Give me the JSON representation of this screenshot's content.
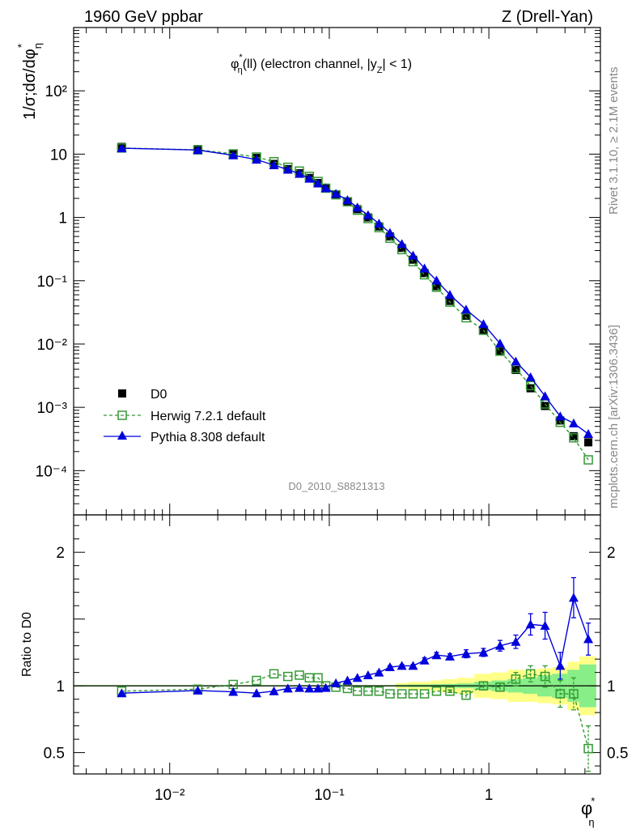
{
  "header": {
    "left": "1960 GeV ppbar",
    "right": "Z (Drell-Yan)"
  },
  "side_text": {
    "rivet": "Rivet 3.1.10, ≥ 2.1M events",
    "mcplots": "mcplots.cern.ch [arXiv:1306.3436]"
  },
  "watermark": "D0_2010_S8821313",
  "chart_data": [
    {
      "type": "line",
      "title": "φ*η(ll) (electron channel, |yZ| < 1)",
      "ylabel": "1/σ;dσ/dφ*η",
      "xlabel": "φ*η",
      "xscale": "log",
      "yscale": "log",
      "xlim": [
        0.0025,
        5.0
      ],
      "ylim": [
        2e-05,
        1000
      ],
      "x_ticks": [
        "10⁻²",
        "10⁻¹",
        "1"
      ],
      "y_ticks": [
        "10⁻⁴",
        "10⁻³",
        "10⁻²",
        "10⁻¹",
        "1",
        "10",
        "10²"
      ],
      "legend_position": "bottom-left",
      "x": [
        0.005,
        0.015,
        0.025,
        0.035,
        0.045,
        0.055,
        0.065,
        0.075,
        0.085,
        0.095,
        0.11,
        0.13,
        0.15,
        0.175,
        0.205,
        0.24,
        0.285,
        0.335,
        0.395,
        0.47,
        0.57,
        0.72,
        0.925,
        1.175,
        1.475,
        1.825,
        2.25,
        2.8,
        3.4,
        4.2
      ],
      "series": [
        {
          "name": "D0",
          "color": "#000000",
          "marker": "square",
          "values": [
            13.0,
            12.0,
            10.0,
            8.7,
            7.0,
            5.8,
            5.0,
            4.2,
            3.5,
            2.9,
            2.3,
            1.8,
            1.35,
            1.0,
            0.72,
            0.5,
            0.33,
            0.215,
            0.132,
            0.082,
            0.048,
            0.028,
            0.0165,
            0.0078,
            0.0039,
            0.002,
            0.00105,
            0.00062,
            0.00035,
            0.00028
          ]
        },
        {
          "name": "Herwig 7.2.1 default",
          "color": "#339933",
          "marker": "open-square",
          "dashed": true,
          "values": [
            12.5,
            11.7,
            10.1,
            9.0,
            7.6,
            6.2,
            5.4,
            4.45,
            3.7,
            2.9,
            2.28,
            1.77,
            1.3,
            0.96,
            0.69,
            0.47,
            0.31,
            0.2,
            0.124,
            0.079,
            0.046,
            0.026,
            0.0165,
            0.0077,
            0.0041,
            0.0022,
            0.00113,
            0.00058,
            0.00033,
            0.000148
          ]
        },
        {
          "name": "Pythia 8.308 default",
          "color": "#0000dd",
          "marker": "triangle",
          "values": [
            12.4,
            11.6,
            9.6,
            8.2,
            6.7,
            5.7,
            4.9,
            4.1,
            3.45,
            2.9,
            2.36,
            1.88,
            1.44,
            1.09,
            0.8,
            0.57,
            0.38,
            0.25,
            0.157,
            0.101,
            0.06,
            0.035,
            0.0207,
            0.0102,
            0.0053,
            0.003,
            0.0015,
            0.00072,
            0.00056,
            0.00038
          ]
        }
      ]
    },
    {
      "type": "line",
      "ylabel": "Ratio to D0",
      "xlabel": "φ*η",
      "xscale": "log",
      "xlim": [
        0.0025,
        5.0
      ],
      "ylim": [
        0.34,
        2.28
      ],
      "y_ticks": [
        "0.5",
        "1",
        "2"
      ],
      "reference_line": 1.0,
      "x": [
        0.005,
        0.015,
        0.025,
        0.035,
        0.045,
        0.055,
        0.065,
        0.075,
        0.085,
        0.095,
        0.11,
        0.13,
        0.15,
        0.175,
        0.205,
        0.24,
        0.285,
        0.335,
        0.395,
        0.47,
        0.57,
        0.72,
        0.925,
        1.175,
        1.475,
        1.825,
        2.25,
        2.8,
        3.4,
        4.2
      ],
      "data_band": {
        "x_edges": [
          0.0,
          0.01,
          0.02,
          0.03,
          0.04,
          0.05,
          0.06,
          0.07,
          0.08,
          0.09,
          0.1,
          0.12,
          0.14,
          0.16,
          0.19,
          0.22,
          0.26,
          0.31,
          0.36,
          0.43,
          0.51,
          0.63,
          0.81,
          1.04,
          1.31,
          1.64,
          2.01,
          2.49,
          3.11,
          3.69,
          4.71
        ],
        "inner": [
          0.005,
          0.005,
          0.005,
          0.005,
          0.005,
          0.005,
          0.005,
          0.005,
          0.005,
          0.005,
          0.005,
          0.005,
          0.005,
          0.005,
          0.005,
          0.005,
          0.008,
          0.01,
          0.01,
          0.012,
          0.014,
          0.018,
          0.03,
          0.04,
          0.05,
          0.06,
          0.08,
          0.09,
          0.12,
          0.16
        ],
        "outer": [
          0.005,
          0.005,
          0.005,
          0.005,
          0.005,
          0.005,
          0.005,
          0.005,
          0.005,
          0.005,
          0.005,
          0.005,
          0.005,
          0.005,
          0.005,
          0.005,
          0.02,
          0.03,
          0.03,
          0.04,
          0.05,
          0.06,
          0.09,
          0.1,
          0.12,
          0.12,
          0.13,
          0.14,
          0.18,
          0.22
        ]
      },
      "series": [
        {
          "name": "Herwig 7.2.1 default",
          "color": "#339933",
          "marker": "open-square",
          "dashed": true,
          "values": [
            0.96,
            0.975,
            1.01,
            1.04,
            1.09,
            1.07,
            1.08,
            1.06,
            1.06,
            1.0,
            0.99,
            0.98,
            0.96,
            0.96,
            0.96,
            0.94,
            0.94,
            0.94,
            0.94,
            0.96,
            0.96,
            0.93,
            1.0,
            0.99,
            1.05,
            1.09,
            1.07,
            0.94,
            0.94,
            0.53
          ],
          "errors": [
            0.005,
            0.005,
            0.005,
            0.005,
            0.005,
            0.005,
            0.005,
            0.005,
            0.005,
            0.005,
            0.005,
            0.005,
            0.005,
            0.005,
            0.005,
            0.005,
            0.005,
            0.005,
            0.005,
            0.005,
            0.01,
            0.03,
            0.03,
            0.03,
            0.05,
            0.06,
            0.08,
            0.1,
            0.12,
            0.17
          ]
        },
        {
          "name": "Pythia 8.308 default",
          "color": "#0000dd",
          "marker": "triangle",
          "values": [
            0.945,
            0.965,
            0.955,
            0.945,
            0.96,
            0.98,
            0.985,
            0.98,
            0.98,
            0.985,
            1.02,
            1.04,
            1.06,
            1.08,
            1.1,
            1.14,
            1.15,
            1.15,
            1.19,
            1.23,
            1.22,
            1.24,
            1.25,
            1.3,
            1.33,
            1.46,
            1.45,
            1.15,
            1.66,
            1.35
          ],
          "errors": [
            0.005,
            0.005,
            0.005,
            0.005,
            0.005,
            0.005,
            0.005,
            0.005,
            0.005,
            0.005,
            0.005,
            0.005,
            0.005,
            0.005,
            0.01,
            0.01,
            0.01,
            0.01,
            0.02,
            0.02,
            0.02,
            0.03,
            0.03,
            0.04,
            0.05,
            0.08,
            0.1,
            0.1,
            0.15,
            0.12
          ]
        }
      ]
    }
  ]
}
